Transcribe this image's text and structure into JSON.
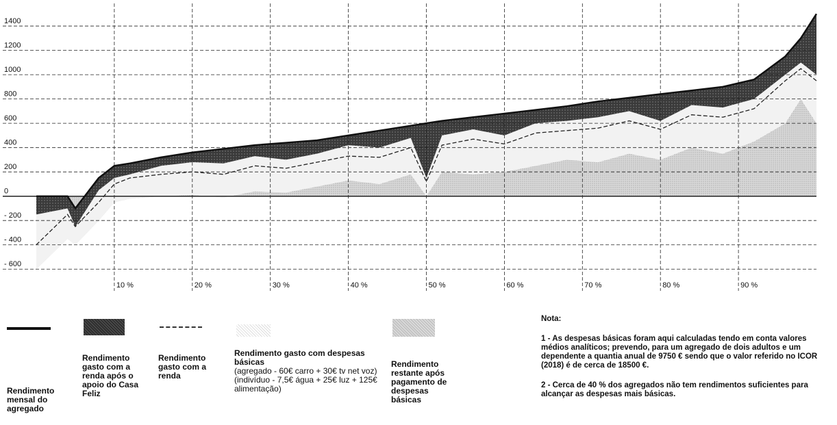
{
  "chart_data": {
    "type": "area",
    "x": [
      0,
      4,
      5,
      8,
      10,
      12,
      16,
      20,
      24,
      28,
      32,
      36,
      40,
      44,
      48,
      50,
      52,
      56,
      60,
      64,
      68,
      72,
      76,
      80,
      84,
      88,
      92,
      96,
      98,
      100
    ],
    "xlim": [
      0,
      100
    ],
    "xticks": [
      {
        "value": 10,
        "label": "10 %"
      },
      {
        "value": 20,
        "label": "20 %"
      },
      {
        "value": 30,
        "label": "30 %"
      },
      {
        "value": 40,
        "label": "40 %"
      },
      {
        "value": 50,
        "label": "50 %"
      },
      {
        "value": 60,
        "label": "60 %"
      },
      {
        "value": 70,
        "label": "70 %"
      },
      {
        "value": 80,
        "label": "80 %"
      },
      {
        "value": 90,
        "label": "90 %"
      }
    ],
    "ylim": [
      -700,
      1530
    ],
    "yticks": [
      {
        "value": -600,
        "label": "- 600"
      },
      {
        "value": -400,
        "label": "- 400"
      },
      {
        "value": -200,
        "label": "- 200"
      },
      0,
      200,
      400,
      600,
      800,
      1000,
      1200,
      1400
    ],
    "grid": true,
    "series": [
      {
        "name": "Rendimento mensal do agregado",
        "color": "#111111",
        "values": [
          0,
          0,
          -100,
          150,
          250,
          270,
          320,
          360,
          390,
          420,
          440,
          460,
          500,
          540,
          580,
          600,
          620,
          650,
          680,
          710,
          740,
          780,
          810,
          840,
          870,
          900,
          960,
          1150,
          1300,
          1500
        ]
      },
      {
        "name": "Rendimento gasto com a renda após o apoio do Casa Feliz",
        "color": "#333333",
        "values": [
          -150,
          -100,
          -250,
          50,
          150,
          180,
          250,
          280,
          270,
          330,
          300,
          350,
          420,
          400,
          480,
          150,
          500,
          550,
          500,
          600,
          620,
          650,
          700,
          620,
          750,
          730,
          800,
          1000,
          1100,
          1000
        ]
      },
      {
        "name": "Rendimento gasto com a renda",
        "color": "#222222",
        "values": [
          -400,
          -150,
          -250,
          -50,
          100,
          150,
          180,
          200,
          180,
          250,
          230,
          280,
          330,
          320,
          400,
          120,
          420,
          470,
          430,
          520,
          540,
          560,
          620,
          550,
          670,
          650,
          720,
          950,
          1050,
          950
        ]
      },
      {
        "name": "Rendimento gasto com despesas básicas",
        "description": "(agregado - 60€ carro + 30€ tv net voz) (indivíduo - 7,5€ água + 25€ luz + 125€ alimentação)",
        "color": "#f2f2f2",
        "values": [
          -600,
          -350,
          -400,
          -200,
          -50,
          -20,
          0,
          10,
          -10,
          40,
          30,
          80,
          130,
          100,
          180,
          0,
          200,
          180,
          200,
          250,
          300,
          280,
          350,
          300,
          400,
          350,
          450,
          600,
          800,
          600
        ]
      },
      {
        "name": "Rendimento restante após pagamento de despesas básicas",
        "color": "#cccccc"
      }
    ]
  },
  "note": {
    "title": "Nota:",
    "items": [
      "1 - As despesas básicas foram aqui calculadas tendo em conta valores médios analíticos; prevendo, para um agregado de dois adultos e um dependente a quantia anual de 9750 € sendo que o valor referido no ICOR (2018) é de cerca de 18500 €.",
      "2 - Cerca de 40 % dos agregados não tem rendimentos suficientes para alcançar as despesas mais básicas."
    ]
  }
}
